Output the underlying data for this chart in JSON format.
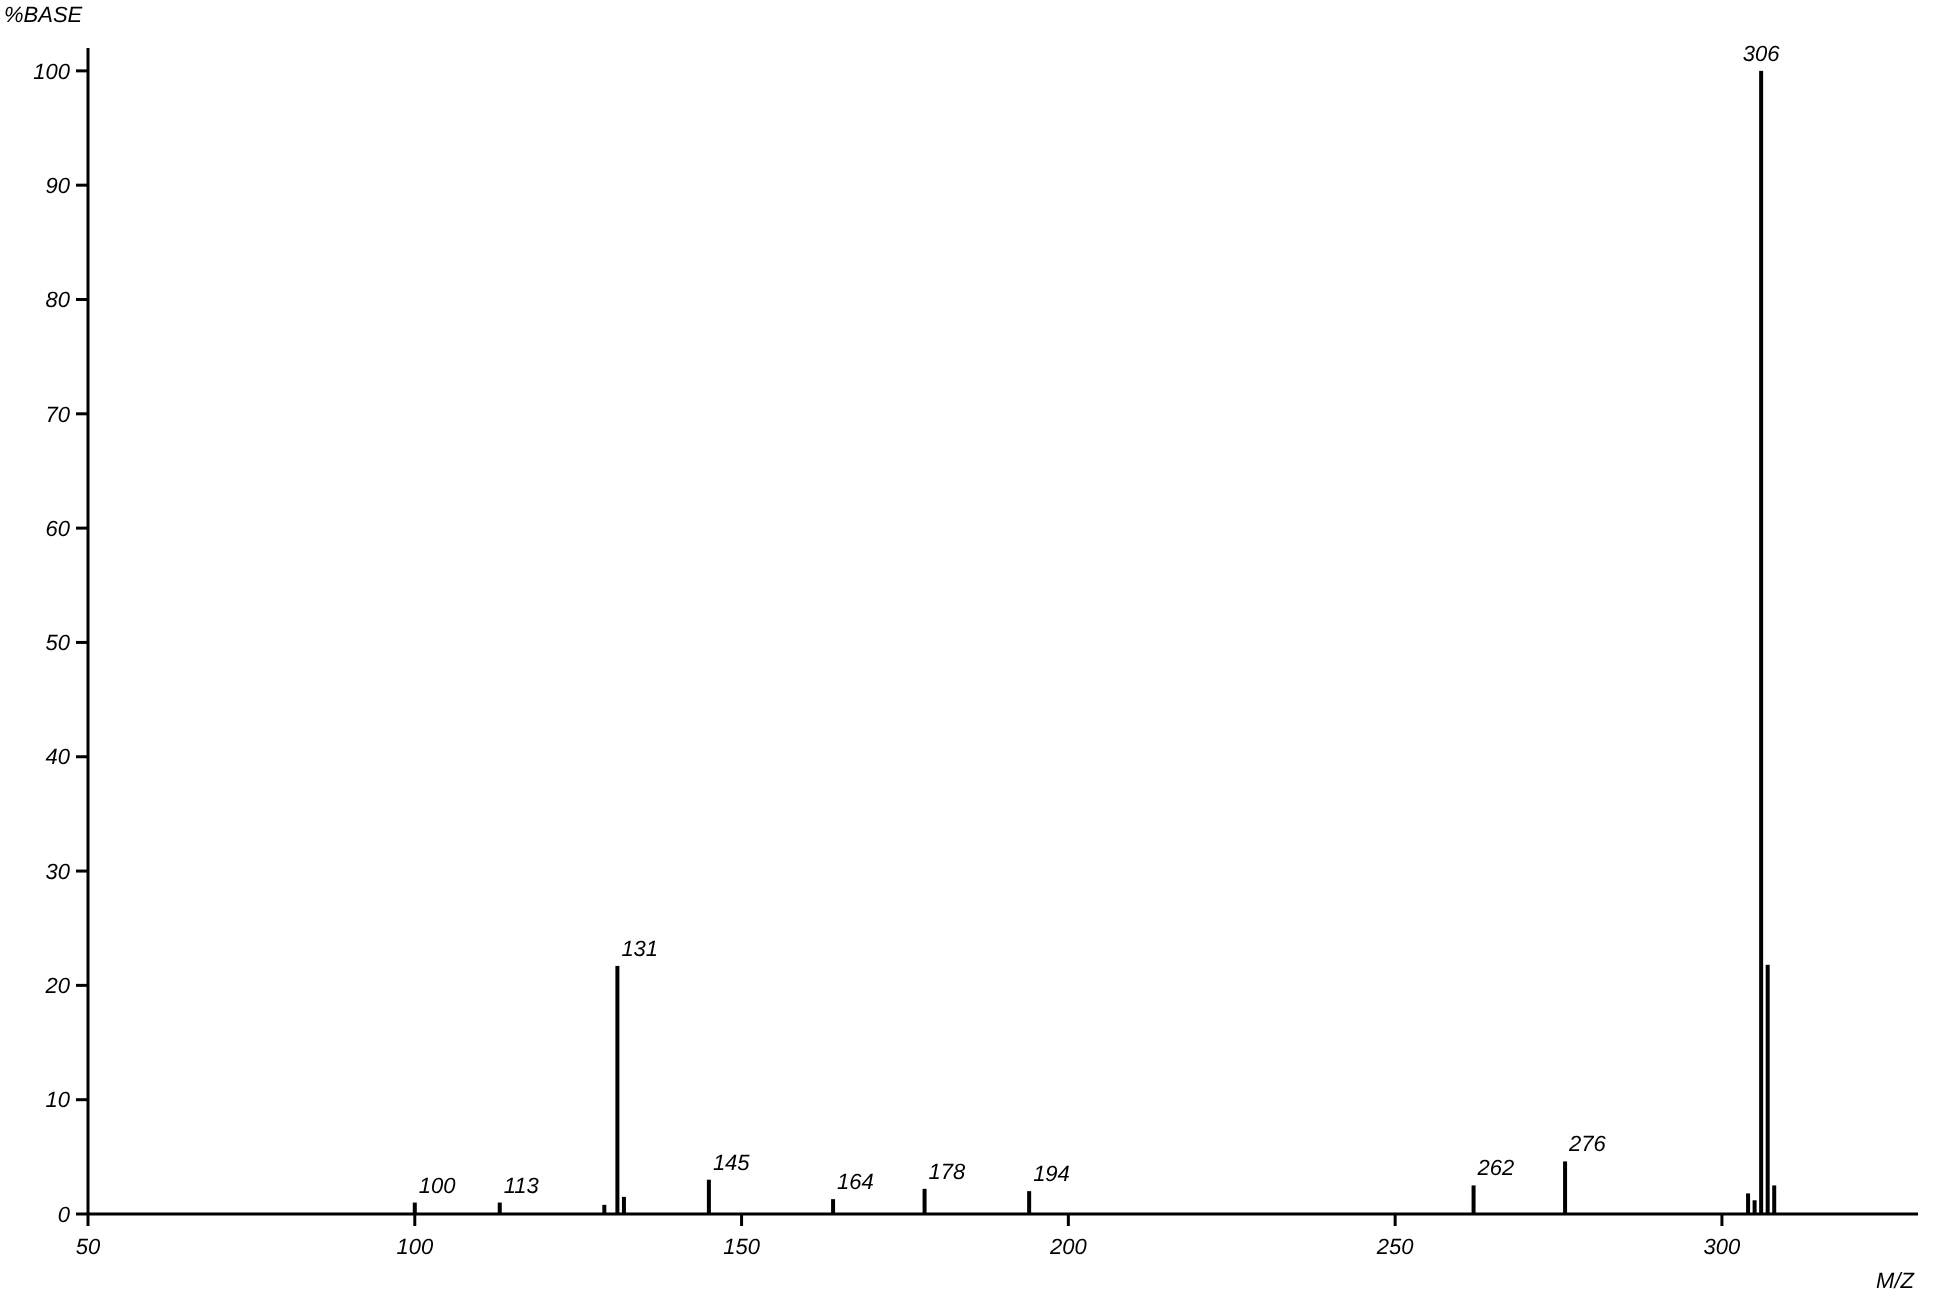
{
  "chart_data": {
    "type": "bar",
    "ylabel": "%BASE",
    "xlabel": "M/Z",
    "x": [
      100,
      113,
      129,
      131,
      132,
      145,
      164,
      178,
      194,
      262,
      276,
      304,
      305,
      306,
      307,
      308
    ],
    "values": [
      1,
      1,
      0.8,
      21.7,
      1.5,
      3,
      1.3,
      2.2,
      2,
      2.5,
      4.6,
      1.8,
      1.2,
      100,
      21.8,
      2.5
    ],
    "color": "#000000",
    "xlim": [
      50,
      330
    ],
    "xticks": [
      50,
      100,
      150,
      200,
      250,
      300
    ],
    "ylim": [
      0,
      102
    ],
    "yticks": [
      0,
      10,
      20,
      30,
      40,
      50,
      60,
      70,
      80,
      90,
      100
    ],
    "annotations": [
      {
        "text": "100",
        "x": 100,
        "y": 1
      },
      {
        "text": "113",
        "x": 113,
        "y": 1
      },
      {
        "text": "131",
        "x": 131,
        "y": 21.7
      },
      {
        "text": "145",
        "x": 145,
        "y": 3
      },
      {
        "text": "164",
        "x": 164,
        "y": 1.3
      },
      {
        "text": "178",
        "x": 178,
        "y": 2.2
      },
      {
        "text": "194",
        "x": 194,
        "y": 2
      },
      {
        "text": "262",
        "x": 262,
        "y": 2.5
      },
      {
        "text": "276",
        "x": 276,
        "y": 4.6
      },
      {
        "text": "306",
        "x": 306,
        "y": 100
      }
    ],
    "grid": false
  }
}
